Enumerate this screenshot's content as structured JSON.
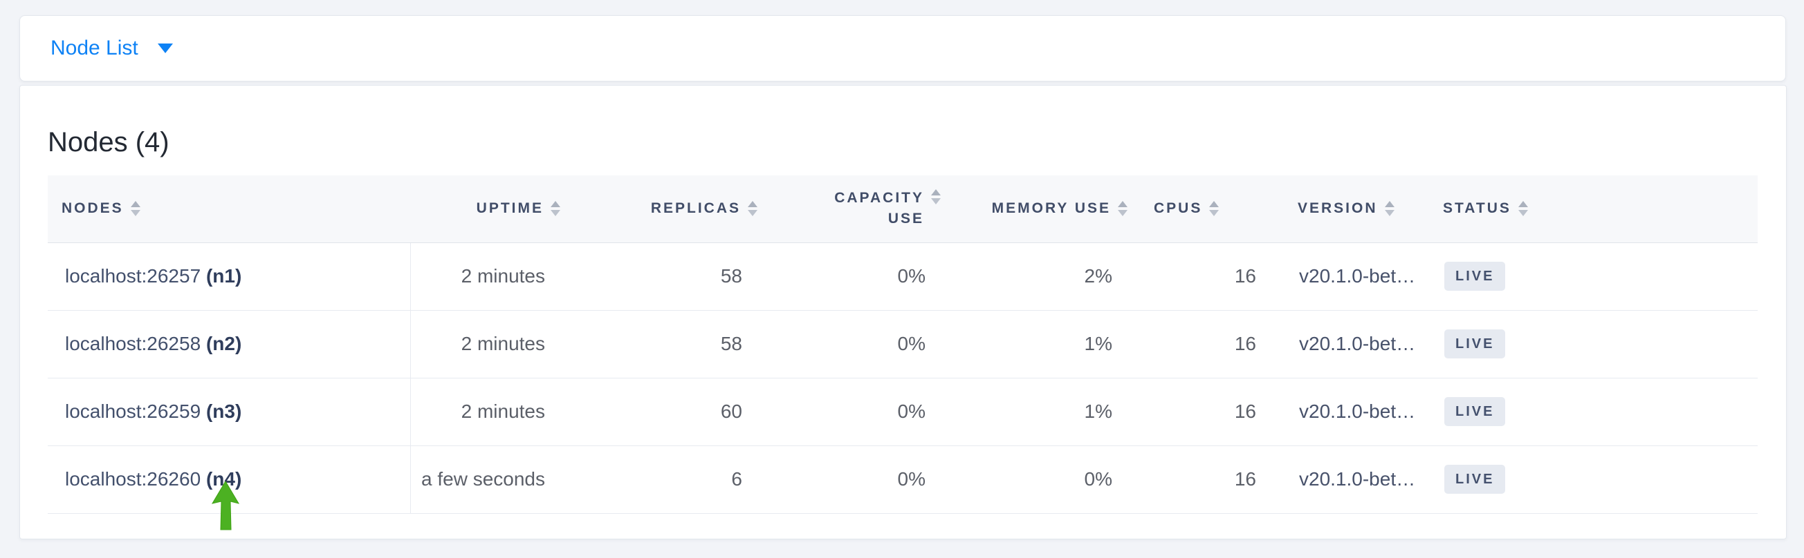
{
  "colors": {
    "accent_blue": "#0e82f5",
    "status_badge_bg": "#e6eaf1",
    "status_badge_text": "#44516e",
    "arrow_green": "#4cb122"
  },
  "toolbar": {
    "dropdown_label": "Node List"
  },
  "panel": {
    "title": "Nodes (4)"
  },
  "table": {
    "columns": [
      {
        "label": "NODES",
        "sortable": true
      },
      {
        "label": "UPTIME",
        "sortable": true
      },
      {
        "label": "REPLICAS",
        "sortable": true
      },
      {
        "label": "CAPACITY USE",
        "sortable": true
      },
      {
        "label": "MEMORY USE",
        "sortable": true
      },
      {
        "label": "CPUS",
        "sortable": true
      },
      {
        "label": "VERSION",
        "sortable": true
      },
      {
        "label": "STATUS",
        "sortable": true
      }
    ],
    "rows": [
      {
        "address": "localhost:26257",
        "node_id": "(n1)",
        "uptime": "2 minutes",
        "replicas": "58",
        "capacity_use": "0%",
        "memory_use": "2%",
        "cpus": "16",
        "version": "v20.1.0-bet…",
        "status": "LIVE"
      },
      {
        "address": "localhost:26258",
        "node_id": "(n2)",
        "uptime": "2 minutes",
        "replicas": "58",
        "capacity_use": "0%",
        "memory_use": "1%",
        "cpus": "16",
        "version": "v20.1.0-bet…",
        "status": "LIVE"
      },
      {
        "address": "localhost:26259",
        "node_id": "(n3)",
        "uptime": "2 minutes",
        "replicas": "60",
        "capacity_use": "0%",
        "memory_use": "1%",
        "cpus": "16",
        "version": "v20.1.0-bet…",
        "status": "LIVE"
      },
      {
        "address": "localhost:26260",
        "node_id": "(n4)",
        "uptime": "a few seconds",
        "replicas": "6",
        "capacity_use": "0%",
        "memory_use": "0%",
        "cpus": "16",
        "version": "v20.1.0-bet…",
        "status": "LIVE"
      }
    ]
  },
  "annotation": {
    "arrow_color": "#4cb122",
    "target_row": "localhost:26260 (n4)"
  }
}
